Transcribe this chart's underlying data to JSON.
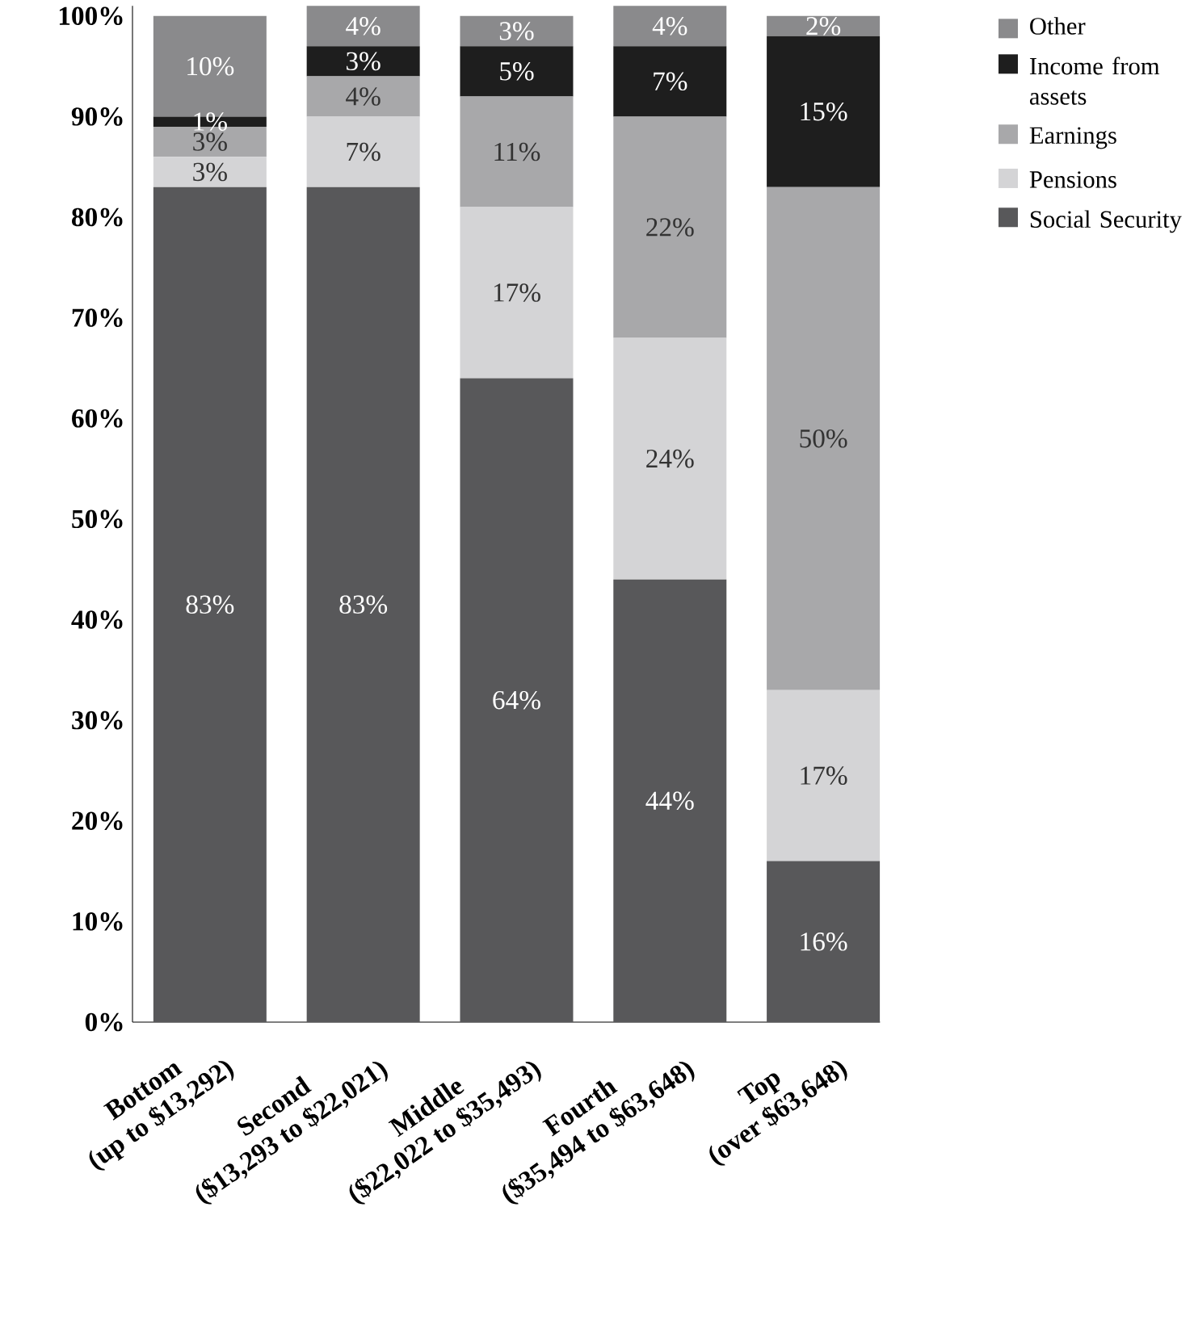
{
  "chart_data": {
    "type": "bar",
    "stacked": true,
    "categories": [
      "Bottom\n(up to $13,292)",
      "Second\n($13,293 to $22,021)",
      "Middle\n($22,022 to $35,493)",
      "Fourth\n($35,494 to $63,648)",
      "Top\n(over $63,648)"
    ],
    "series": [
      {
        "name": "Social Security",
        "color": "#58585a",
        "values": [
          83,
          83,
          64,
          44,
          16
        ],
        "value_labels": [
          "83%",
          "83%",
          "64%",
          "44%",
          "16%"
        ]
      },
      {
        "name": "Pensions",
        "color": "#d4d4d6",
        "values": [
          3,
          7,
          17,
          24,
          17
        ],
        "value_labels": [
          "3%",
          "7%",
          "17%",
          "24%",
          "17%"
        ]
      },
      {
        "name": "Earnings",
        "color": "#a8a8aa",
        "values": [
          3,
          4,
          11,
          22,
          50
        ],
        "value_labels": [
          "3%",
          "4%",
          "11%",
          "22%",
          "50%"
        ]
      },
      {
        "name": "Income from assets",
        "color": "#1e1e1e",
        "values": [
          1,
          3,
          5,
          7,
          15
        ],
        "value_labels": [
          "1%",
          "3%",
          "5%",
          "7%",
          "15%"
        ]
      },
      {
        "name": "Other",
        "color": "#8a8a8c",
        "values": [
          10,
          4,
          3,
          4,
          2
        ],
        "value_labels": [
          "10%",
          "4%",
          "3%",
          "4%",
          "2%"
        ]
      }
    ],
    "ylim": [
      0,
      101
    ],
    "yticks": [
      {
        "value": 0,
        "label": "0%"
      },
      {
        "value": 10,
        "label": "10%"
      },
      {
        "value": 20,
        "label": "20%"
      },
      {
        "value": 30,
        "label": "30%"
      },
      {
        "value": 40,
        "label": "40%"
      },
      {
        "value": 50,
        "label": "50%"
      },
      {
        "value": 60,
        "label": "60%"
      },
      {
        "value": 70,
        "label": "70%"
      },
      {
        "value": 80,
        "label": "80%"
      },
      {
        "value": 90,
        "label": "90%"
      },
      {
        "value": 100,
        "label": "100%"
      }
    ],
    "grid": false,
    "legend": "top right"
  }
}
